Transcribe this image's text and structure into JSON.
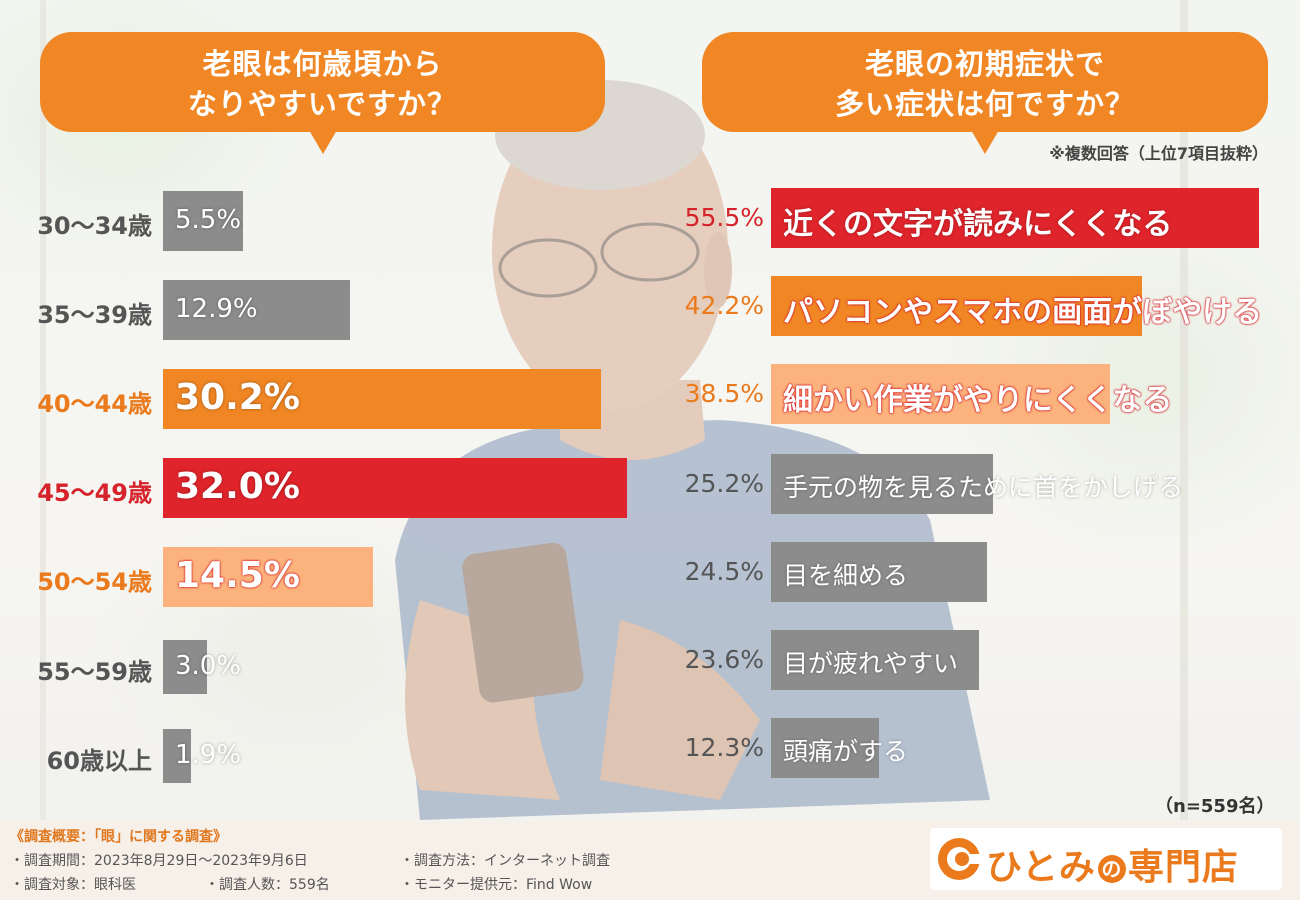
{
  "left_panel": {
    "question_line1": "老眼は何歳頃から",
    "question_line2": "なりやすいですか？"
  },
  "right_panel": {
    "question_line1": "老眼の初期症状で",
    "question_line2": "多い症状は何ですか？",
    "note": "※複数回答（上位7項目抜粋）",
    "sample_size": "（n=559名）"
  },
  "chart_data": [
    {
      "type": "bar",
      "orientation": "horizontal",
      "categories": [
        "30〜34歳",
        "35〜39歳",
        "40〜44歳",
        "45〜49歳",
        "50〜54歳",
        "55〜59歳",
        "60歳以上"
      ],
      "values": [
        5.5,
        12.9,
        30.2,
        32.0,
        14.5,
        3.0,
        1.9
      ],
      "labels": [
        "5.5%",
        "12.9%",
        "30.2%",
        "32.0%",
        "14.5%",
        "3.0%",
        "1.9%"
      ],
      "unit": "%",
      "colors": [
        "#8c8c8c",
        "#8c8c8c",
        "#f08624",
        "#e0242b",
        "#fbb27c",
        "#8c8c8c",
        "#8c8c8c"
      ],
      "label_colors": [
        "#555555",
        "#555555",
        "#ea7a1c",
        "#d6222a",
        "#ea7a1c",
        "#555555",
        "#555555"
      ]
    },
    {
      "type": "bar",
      "orientation": "horizontal",
      "categories": [
        "近くの文字が読みにくくなる",
        "パソコンやスマホの画面がぼやける",
        "細かい作業がやりにくくなる",
        "手元の物を見るために首をかしげる",
        "目を細める",
        "目が疲れやすい",
        "頭痛がする"
      ],
      "values": [
        55.5,
        42.2,
        38.5,
        25.2,
        24.5,
        23.6,
        12.3
      ],
      "labels": [
        "55.5%",
        "42.2%",
        "38.5%",
        "25.2%",
        "24.5%",
        "23.6%",
        "12.3%"
      ],
      "unit": "%",
      "colors": [
        "#e0242b",
        "#f08624",
        "#fbb27c",
        "#8c8c8c",
        "#8c8c8c",
        "#8c8c8c",
        "#8c8c8c"
      ],
      "label_colors": [
        "#d6222a",
        "#ea7a1c",
        "#ea7a1c",
        "#555555",
        "#555555",
        "#555555",
        "#555555"
      ]
    }
  ],
  "footer": {
    "title": "《調査概要：「眼」に関する調査》",
    "period": "・調査期間：2023年8月29日〜2023年9月6日",
    "method": "・調査方法：インターネット調査",
    "target": "・調査対象：眼科医",
    "count": "・調査人数：559名",
    "provider": "・モニター提供元：Find Wow"
  },
  "logo": {
    "text_before": "ひとみ",
    "no": "の",
    "text_after": "専門店"
  },
  "colors": {
    "orange": "#f08624",
    "red": "#e0242b",
    "light_orange": "#fbb27c",
    "gray": "#8c8c8c"
  }
}
